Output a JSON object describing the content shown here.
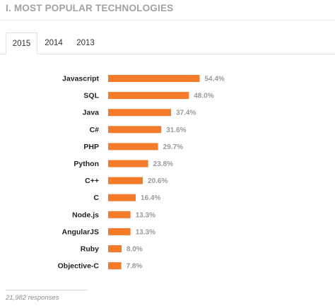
{
  "section": {
    "title": "I. MOST POPULAR TECHNOLOGIES"
  },
  "tabs": [
    {
      "label": "2015",
      "active": true
    },
    {
      "label": "2014",
      "active": false
    },
    {
      "label": "2013",
      "active": false
    }
  ],
  "colors": {
    "bar": "#f47b2a",
    "value_text": "#9a9a9a",
    "label_text": "#222222"
  },
  "chart_data": {
    "type": "bar",
    "orientation": "horizontal",
    "title": "",
    "xlabel": "",
    "ylabel": "",
    "categories": [
      "Javascript",
      "SQL",
      "Java",
      "C#",
      "PHP",
      "Python",
      "C++",
      "C",
      "Node.js",
      "AngularJS",
      "Ruby",
      "Objective-C"
    ],
    "values": [
      54.4,
      48.0,
      37.4,
      31.6,
      29.7,
      23.8,
      20.6,
      16.4,
      13.3,
      13.3,
      8.0,
      7.8
    ],
    "value_labels": [
      "54.4%",
      "48.0%",
      "37.4%",
      "31.6%",
      "29.7%",
      "23.8%",
      "20.6%",
      "16.4%",
      "13.3%",
      "13.3%",
      "8.0%",
      "7.8%"
    ],
    "unit": "%",
    "grid": false,
    "legend": "none"
  },
  "footer": {
    "responses": "21,982 responses"
  }
}
